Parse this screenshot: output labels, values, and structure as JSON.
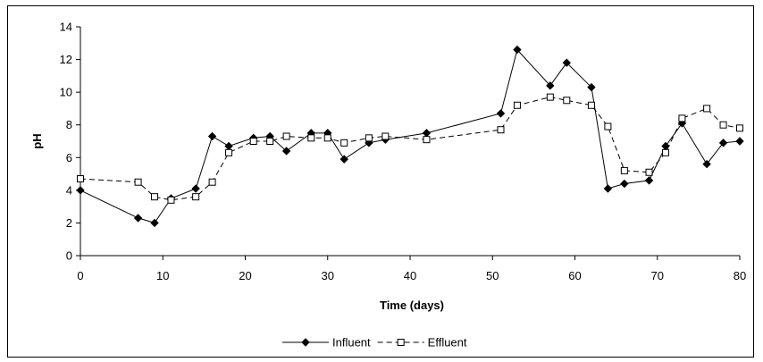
{
  "chart_data": {
    "type": "line",
    "xlabel": "Time (days)",
    "ylabel": "pH",
    "xlim": [
      0,
      80
    ],
    "ylim": [
      0,
      14
    ],
    "x_ticks": [
      0,
      10,
      20,
      30,
      40,
      50,
      60,
      70,
      80
    ],
    "y_ticks": [
      0,
      2,
      4,
      6,
      8,
      10,
      12,
      14
    ],
    "grid": false,
    "legend_position": "bottom",
    "series": [
      {
        "name": "Influent",
        "line_style": "solid",
        "marker": "filled-diamond",
        "points": [
          [
            0,
            4.0
          ],
          [
            7,
            2.3
          ],
          [
            9,
            2.0
          ],
          [
            11,
            3.5
          ],
          [
            14,
            4.1
          ],
          [
            16,
            7.3
          ],
          [
            18,
            6.7
          ],
          [
            21,
            7.2
          ],
          [
            23,
            7.3
          ],
          [
            25,
            6.4
          ],
          [
            28,
            7.5
          ],
          [
            30,
            7.5
          ],
          [
            32,
            5.9
          ],
          [
            35,
            6.9
          ],
          [
            37,
            7.1
          ],
          [
            42,
            7.5
          ],
          [
            51,
            8.7
          ],
          [
            53,
            12.6
          ],
          [
            57,
            10.4
          ],
          [
            59,
            11.8
          ],
          [
            62,
            10.3
          ],
          [
            64,
            4.1
          ],
          [
            66,
            4.4
          ],
          [
            69,
            4.6
          ],
          [
            71,
            6.7
          ],
          [
            73,
            8.1
          ],
          [
            76,
            5.6
          ],
          [
            78,
            6.9
          ],
          [
            80,
            7.0
          ]
        ]
      },
      {
        "name": "Effluent",
        "line_style": "dashed",
        "marker": "open-square",
        "points": [
          [
            0,
            4.7
          ],
          [
            7,
            4.5
          ],
          [
            9,
            3.6
          ],
          [
            11,
            3.4
          ],
          [
            14,
            3.6
          ],
          [
            16,
            4.5
          ],
          [
            18,
            6.3
          ],
          [
            21,
            7.0
          ],
          [
            23,
            7.0
          ],
          [
            25,
            7.3
          ],
          [
            28,
            7.2
          ],
          [
            30,
            7.2
          ],
          [
            32,
            6.9
          ],
          [
            35,
            7.2
          ],
          [
            37,
            7.3
          ],
          [
            42,
            7.1
          ],
          [
            51,
            7.7
          ],
          [
            53,
            9.2
          ],
          [
            57,
            9.7
          ],
          [
            59,
            9.5
          ],
          [
            62,
            9.2
          ],
          [
            64,
            7.9
          ],
          [
            66,
            5.2
          ],
          [
            69,
            5.1
          ],
          [
            71,
            6.3
          ],
          [
            73,
            8.4
          ],
          [
            76,
            9.0
          ],
          [
            78,
            8.0
          ],
          [
            80,
            7.8
          ]
        ]
      }
    ]
  }
}
